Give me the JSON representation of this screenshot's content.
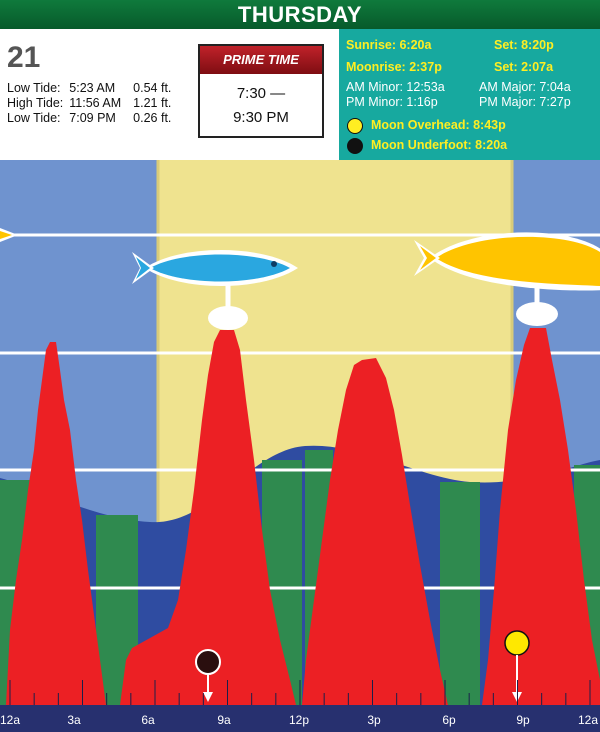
{
  "header": {
    "day": "THURSDAY"
  },
  "date": "21",
  "tides": [
    {
      "label": "Low Tide:",
      "time": "5:23 AM",
      "height": "0.54 ft."
    },
    {
      "label": "High Tide:",
      "time": "11:56 AM",
      "height": "1.21 ft."
    },
    {
      "label": "Low Tide:",
      "time": "7:09 PM",
      "height": "0.26 ft."
    }
  ],
  "prime_time": {
    "title": "PRIME TIME",
    "start": "7:30 —",
    "end": "9:30 PM"
  },
  "astro": {
    "sunrise": "Sunrise: 6:20a",
    "sunset": "Set: 8:20p",
    "moonrise": "Moonrise: 2:37p",
    "moonset": "Set: 2:07a",
    "am_minor": "AM Minor: 12:53a",
    "pm_minor": "PM Minor: 1:16p",
    "am_major": "AM Major: 7:04a",
    "pm_major": "PM Major: 7:27p",
    "moon_overhead": "Moon Overhead: 8:43p",
    "moon_underfoot": "Moon Underfoot: 8:20a"
  },
  "timeline": {
    "labels": [
      "12a",
      "3a",
      "6a",
      "9a",
      "12p",
      "3p",
      "6p",
      "9p",
      "12a"
    ]
  },
  "colors": {
    "header_green": "#0f7a3c",
    "astro_teal": "#17a99f",
    "astro_yellow": "#ffee22",
    "prime_red": "#b8161d",
    "night_blue": "#6f93cf",
    "day_yellow": "#efe38f",
    "sea_blue": "#2f4ca1",
    "sea_green": "#2f8a4f",
    "activity_red": "#ec2024",
    "fish_blue": "#2aa7e0",
    "fish_yellow": "#ffc400",
    "axis_navy": "#27306f"
  },
  "icons": [
    "fish-blue-icon",
    "fish-yellow-icon",
    "moon-overhead-icon",
    "moon-underfoot-icon"
  ]
}
